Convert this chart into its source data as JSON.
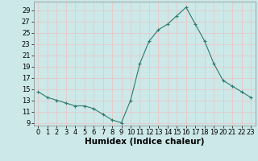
{
  "x": [
    0,
    1,
    2,
    3,
    4,
    5,
    6,
    7,
    8,
    9,
    10,
    11,
    12,
    13,
    14,
    15,
    16,
    17,
    18,
    19,
    20,
    21,
    22,
    23
  ],
  "y": [
    14.5,
    13.5,
    13.0,
    12.5,
    12.0,
    12.0,
    11.5,
    10.5,
    9.5,
    9.0,
    13.0,
    19.5,
    23.5,
    25.5,
    26.5,
    28.0,
    29.5,
    26.5,
    23.5,
    19.5,
    16.5,
    15.5,
    14.5,
    13.5
  ],
  "line_color": "#2d7a6e",
  "marker": "+",
  "bg_color": "#cce8e8",
  "grid_color": "#e8c8c8",
  "xlabel": "Humidex (Indice chaleur)",
  "xlim": [
    -0.5,
    23.5
  ],
  "ylim": [
    8.5,
    30.5
  ],
  "yticks": [
    9,
    11,
    13,
    15,
    17,
    19,
    21,
    23,
    25,
    27,
    29
  ],
  "xticks": [
    0,
    1,
    2,
    3,
    4,
    5,
    6,
    7,
    8,
    9,
    10,
    11,
    12,
    13,
    14,
    15,
    16,
    17,
    18,
    19,
    20,
    21,
    22,
    23
  ],
  "axis_fontsize": 6.5,
  "tick_fontsize": 6.0,
  "xlabel_fontsize": 7.5
}
